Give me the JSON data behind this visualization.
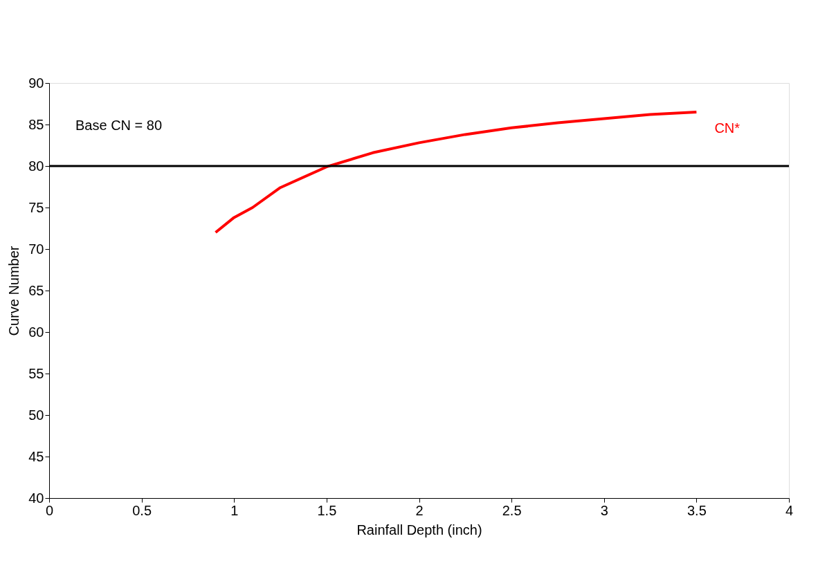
{
  "chart_data": {
    "type": "line",
    "xlabel": "Rainfall Depth (inch)",
    "ylabel": "Curve Number",
    "xlim": [
      0,
      4
    ],
    "xticks": [
      0,
      0.5,
      1,
      1.5,
      2,
      2.5,
      3,
      3.5,
      4
    ],
    "ylim": [
      40,
      90
    ],
    "yticks": [
      40,
      45,
      50,
      55,
      60,
      65,
      70,
      75,
      80,
      85,
      90
    ],
    "series": [
      {
        "name": "CN*",
        "color": "#ff0000",
        "x": [
          0.9,
          1.0,
          1.1,
          1.25,
          1.5,
          1.75,
          2.0,
          2.25,
          2.5,
          2.75,
          3.0,
          3.25,
          3.5
        ],
        "values": [
          72.0,
          73.8,
          75.0,
          77.4,
          79.9,
          81.6,
          82.8,
          83.8,
          84.6,
          85.2,
          85.7,
          86.2,
          86.5
        ]
      }
    ],
    "ref_lines": [
      {
        "axis": "y",
        "value": 80,
        "label": "Base CN = 80",
        "color": "#000000",
        "line_style": "solid"
      }
    ],
    "grid": false,
    "marker": "none",
    "line_style": "solid"
  }
}
